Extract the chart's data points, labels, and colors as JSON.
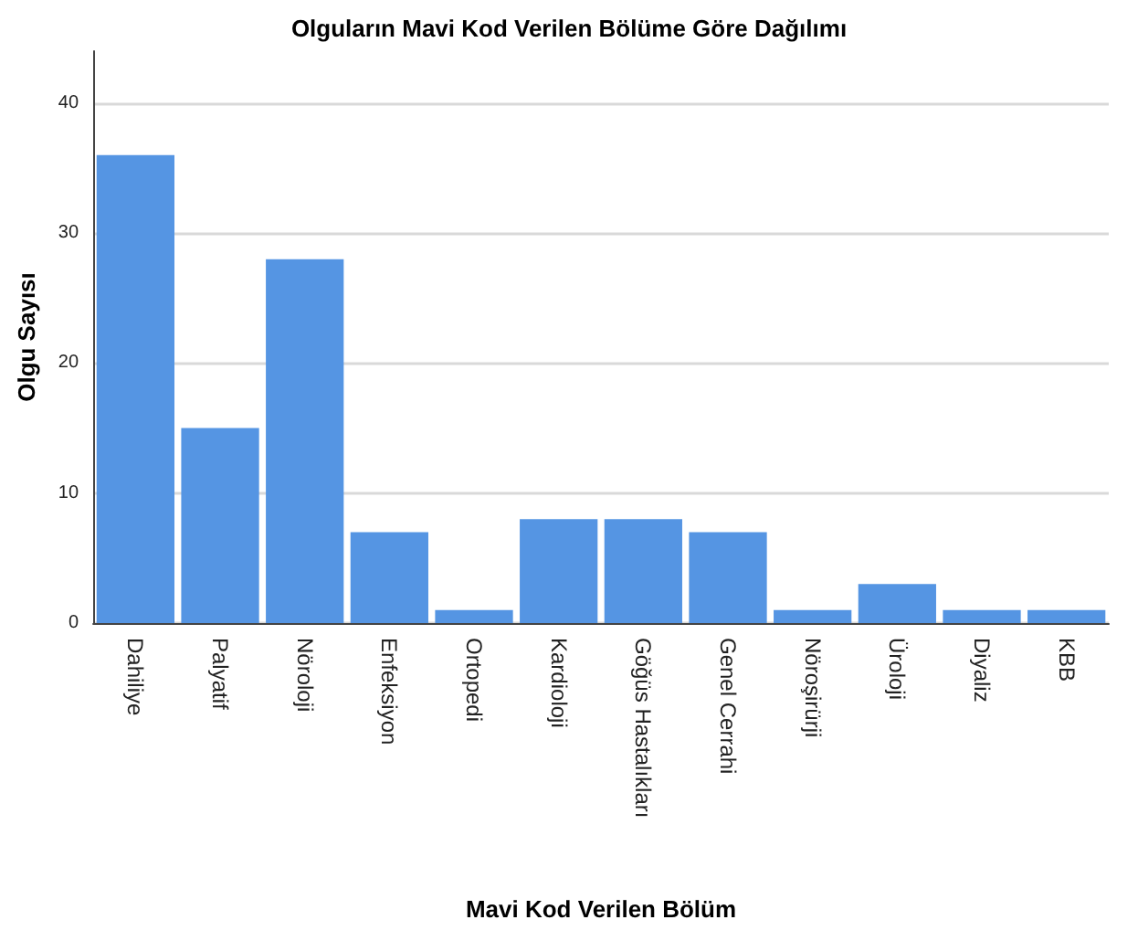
{
  "chart_data": {
    "type": "bar",
    "title": "Olguların Mavi Kod Verilen Bölüme Göre Dağılımı",
    "xlabel": "Mavi Kod Verilen Bölüm",
    "ylabel": "Olgu Sayısı",
    "categories": [
      "Dahiliye",
      "Palyatif",
      "Nöroloji",
      "Enfeksiyon",
      "Ortopedi",
      "Kardioloji",
      "Göğüs Hastalıkları",
      "Genel Cerrahi",
      "Nöroşirürji",
      "Üroloji",
      "Diyaliz",
      "KBB"
    ],
    "values": [
      36,
      15,
      28,
      7,
      1,
      8,
      8,
      7,
      1,
      3,
      1,
      1
    ],
    "color": "#5595e3",
    "ylim": [
      0,
      44
    ],
    "yticks": [
      0,
      10,
      20,
      30,
      40
    ],
    "grid": "y"
  }
}
